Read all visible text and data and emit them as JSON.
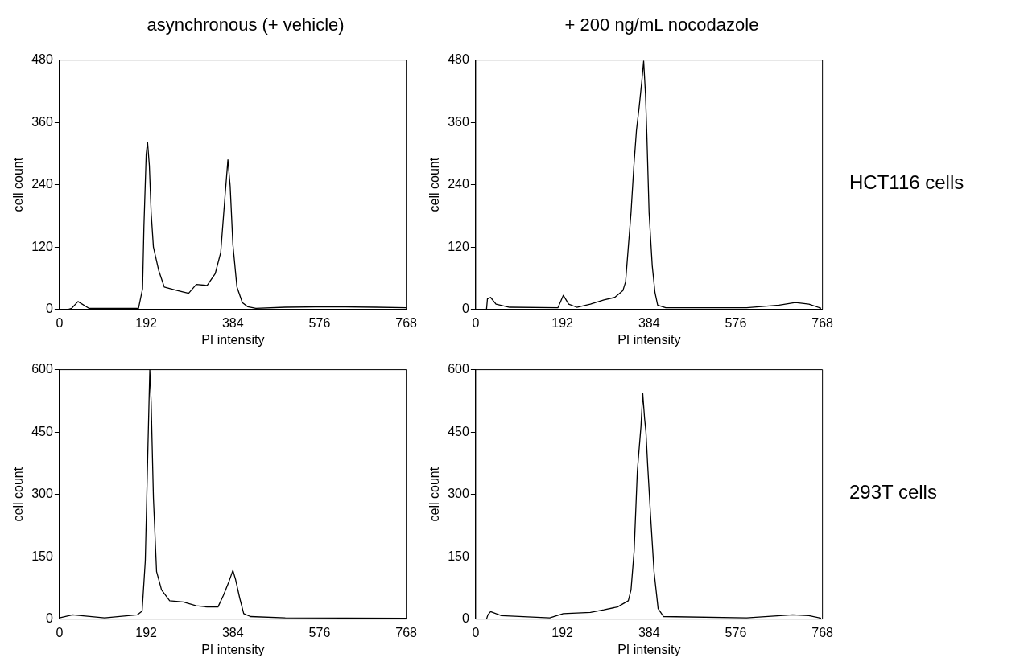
{
  "chart_data": [
    {
      "type": "line",
      "title": "asynchronous (+ vehicle)",
      "xlabel": "PI intensity",
      "ylabel": "cell count",
      "xlim": [
        0,
        768
      ],
      "xticks": [
        0,
        192,
        384,
        576,
        768
      ],
      "ylim": [
        0,
        480
      ],
      "yticks": [
        0,
        120,
        240,
        360,
        480
      ],
      "grid": false,
      "legend": false,
      "marker": "none",
      "series": [
        {
          "color": "#000000",
          "x": [
            0,
            20,
            27,
            41,
            65,
            100,
            175,
            184,
            187,
            192,
            195,
            199,
            203,
            208,
            220,
            232,
            262,
            286,
            303,
            327,
            345,
            357,
            366,
            373,
            378,
            384,
            393,
            405,
            417,
            435,
            500,
            600,
            700,
            768
          ],
          "values": [
            0,
            0,
            2,
            15,
            2,
            2,
            2,
            40,
            160,
            298,
            322,
            277,
            186,
            120,
            74,
            43,
            36,
            31,
            48,
            46,
            69,
            109,
            211,
            288,
            237,
            125,
            43,
            13,
            5,
            2,
            4,
            5,
            4,
            3
          ]
        }
      ]
    },
    {
      "type": "line",
      "title": "+ 200 ng/mL nocodazole",
      "xlabel": "PI intensity",
      "ylabel": "cell count",
      "annotations": [
        "HCT116 cells"
      ],
      "xlim": [
        0,
        768
      ],
      "xticks": [
        0,
        192,
        384,
        576,
        768
      ],
      "ylim": [
        0,
        480
      ],
      "yticks": [
        0,
        120,
        240,
        360,
        480
      ],
      "grid": false,
      "legend": false,
      "marker": "none",
      "series": [
        {
          "color": "#000000",
          "x": [
            0,
            24,
            26,
            33,
            45,
            75,
            182,
            194,
            206,
            224,
            254,
            284,
            308,
            326,
            332,
            338,
            344,
            350,
            356,
            362,
            368,
            372,
            376,
            379,
            384,
            391,
            397,
            403,
            421,
            600,
            672,
            708,
            738,
            765
          ],
          "values": [
            0,
            0,
            20,
            23,
            10,
            4,
            3,
            27,
            10,
            4,
            10,
            18,
            23,
            36,
            53,
            120,
            186,
            272,
            344,
            389,
            440,
            478,
            415,
            339,
            186,
            84,
            33,
            8,
            3,
            3,
            8,
            13,
            10,
            2
          ]
        }
      ]
    },
    {
      "type": "line",
      "xlabel": "PI intensity",
      "ylabel": "cell count",
      "xlim": [
        0,
        768
      ],
      "xticks": [
        0,
        192,
        384,
        576,
        768
      ],
      "ylim": [
        0,
        600
      ],
      "yticks": [
        0,
        150,
        300,
        450,
        600
      ],
      "grid": false,
      "legend": false,
      "marker": "none",
      "series": [
        {
          "color": "#000000",
          "x": [
            0,
            29,
            100,
            172,
            183,
            190,
            196,
            200,
            203,
            208,
            215,
            226,
            244,
            274,
            303,
            327,
            351,
            363,
            375,
            384,
            390,
            399,
            408,
            423,
            500,
            768
          ],
          "values": [
            3,
            10,
            3,
            10,
            19,
            140,
            419,
            600,
            521,
            292,
            114,
            70,
            44,
            41,
            32,
            29,
            29,
            57,
            89,
            117,
            95,
            51,
            13,
            6,
            3,
            2
          ]
        }
      ]
    },
    {
      "type": "line",
      "xlabel": "PI intensity",
      "ylabel": "cell count",
      "annotations": [
        "293T cells"
      ],
      "xlim": [
        0,
        768
      ],
      "xticks": [
        0,
        192,
        384,
        576,
        768
      ],
      "ylim": [
        0,
        600
      ],
      "yticks": [
        0,
        150,
        300,
        450,
        600
      ],
      "grid": false,
      "legend": false,
      "marker": "none",
      "series": [
        {
          "color": "#000000",
          "x": [
            0,
            24,
            27,
            33,
            57,
            164,
            194,
            254,
            284,
            314,
            338,
            344,
            351,
            358,
            366,
            370,
            374,
            377,
            381,
            387,
            395,
            404,
            416,
            600,
            702,
            738,
            765
          ],
          "values": [
            0,
            0,
            10,
            18,
            8,
            3,
            13,
            16,
            22,
            29,
            44,
            70,
            165,
            356,
            463,
            543,
            483,
            451,
            368,
            254,
            114,
            25,
            6,
            3,
            10,
            8,
            2
          ]
        }
      ]
    }
  ]
}
